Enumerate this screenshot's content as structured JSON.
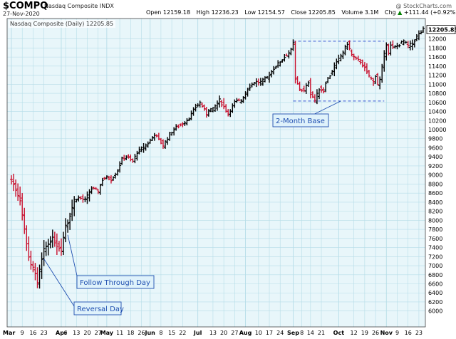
{
  "header": {
    "symbol": "$COMPQ",
    "name": "Nasdaq Composite INDX",
    "date": "27-Nov-2020",
    "copyright": "@ StockCharts.com",
    "quote": [
      {
        "label": "Open",
        "value": "12159.18"
      },
      {
        "label": "High",
        "value": "12236.23"
      },
      {
        "label": "Low",
        "value": "12154.57"
      },
      {
        "label": "Close",
        "value": "12205.85"
      },
      {
        "label": "Volume",
        "value": "3.1M"
      },
      {
        "label": "Chg",
        "value": "+111.44 (+0.92%)",
        "arrow": "▲"
      }
    ]
  },
  "colors": {
    "background": "#e8f6fa",
    "grid": "#b6dde8",
    "up_bar": "#000000",
    "down_bar": "#c8102e",
    "annotation": "#1f4fb0",
    "box_fill": "#dff2fb",
    "dashed_line": "#3050d0"
  },
  "chart_data": {
    "type": "ohlc",
    "legend": "Nasdaq Composite (Daily) 12205.85",
    "last_value": "12205.85",
    "ylim": [
      5650,
      12450
    ],
    "y_ticks": [
      6000,
      6200,
      6400,
      6600,
      6800,
      7000,
      7200,
      7400,
      7600,
      7800,
      8000,
      8200,
      8400,
      8600,
      8800,
      9000,
      9200,
      9400,
      9600,
      9800,
      10000,
      10200,
      10400,
      10600,
      10800,
      11000,
      11200,
      11400,
      11600,
      11800,
      12000
    ],
    "x_labels": [
      {
        "label": "Mar",
        "i": 0,
        "bold": true
      },
      {
        "label": "9",
        "i": 5
      },
      {
        "label": "16",
        "i": 10
      },
      {
        "label": "23",
        "i": 15
      },
      {
        "label": "Apr",
        "i": 23,
        "bold": true
      },
      {
        "label": "6",
        "i": 25
      },
      {
        "label": "13",
        "i": 30
      },
      {
        "label": "20",
        "i": 35
      },
      {
        "label": "27",
        "i": 40
      },
      {
        "label": "May",
        "i": 44,
        "bold": true
      },
      {
        "label": "11",
        "i": 50
      },
      {
        "label": "18",
        "i": 55
      },
      {
        "label": "26",
        "i": 60
      },
      {
        "label": "Jun",
        "i": 64,
        "bold": true
      },
      {
        "label": "8",
        "i": 69
      },
      {
        "label": "15",
        "i": 74
      },
      {
        "label": "22",
        "i": 79
      },
      {
        "label": "Jul",
        "i": 86,
        "bold": true
      },
      {
        "label": "13",
        "i": 93
      },
      {
        "label": "20",
        "i": 98
      },
      {
        "label": "27",
        "i": 103
      },
      {
        "label": "Aug",
        "i": 108,
        "bold": true
      },
      {
        "label": "10",
        "i": 114
      },
      {
        "label": "17",
        "i": 119
      },
      {
        "label": "24",
        "i": 124
      },
      {
        "label": "Sep",
        "i": 130,
        "bold": true
      },
      {
        "label": "8",
        "i": 134
      },
      {
        "label": "14",
        "i": 138
      },
      {
        "label": "21",
        "i": 143
      },
      {
        "label": "Oct",
        "i": 151,
        "bold": true
      },
      {
        "label": "12",
        "i": 158
      },
      {
        "label": "19",
        "i": 163
      },
      {
        "label": "26",
        "i": 168
      },
      {
        "label": "Nov",
        "i": 173,
        "bold": true
      },
      {
        "label": "9",
        "i": 178
      },
      {
        "label": "16",
        "i": 183
      },
      {
        "label": "23",
        "i": 188
      }
    ],
    "anchors": [
      [
        0,
        8900
      ],
      [
        4,
        8450
      ],
      [
        6,
        7800
      ],
      [
        8,
        7200
      ],
      [
        9,
        7000
      ],
      [
        10,
        6950
      ],
      [
        11,
        6850
      ],
      [
        12,
        6600
      ],
      [
        13,
        6900
      ],
      [
        15,
        7350
      ],
      [
        18,
        7550
      ],
      [
        19,
        7600
      ],
      [
        21,
        7450
      ],
      [
        23,
        7350
      ],
      [
        25,
        7900
      ],
      [
        26,
        7950
      ],
      [
        29,
        8450
      ],
      [
        31,
        8500
      ],
      [
        34,
        8450
      ],
      [
        37,
        8700
      ],
      [
        40,
        8650
      ],
      [
        42,
        8900
      ],
      [
        44,
        8950
      ],
      [
        46,
        8900
      ],
      [
        49,
        9100
      ],
      [
        51,
        9350
      ],
      [
        53,
        9400
      ],
      [
        56,
        9300
      ],
      [
        58,
        9500
      ],
      [
        63,
        9700
      ],
      [
        66,
        9900
      ],
      [
        70,
        9650
      ],
      [
        73,
        9900
      ],
      [
        76,
        10050
      ],
      [
        78,
        10100
      ],
      [
        82,
        10250
      ],
      [
        85,
        10500
      ],
      [
        87,
        10600
      ],
      [
        90,
        10350
      ],
      [
        91,
        10450
      ],
      [
        93,
        10450
      ],
      [
        96,
        10650
      ],
      [
        100,
        10350
      ],
      [
        103,
        10600
      ],
      [
        106,
        10650
      ],
      [
        109,
        10900
      ],
      [
        112,
        11050
      ],
      [
        115,
        11050
      ],
      [
        118,
        11150
      ],
      [
        121,
        11350
      ],
      [
        124,
        11500
      ],
      [
        127,
        11650
      ],
      [
        129,
        11750
      ],
      [
        130,
        11900
      ],
      [
        131,
        11100
      ],
      [
        133,
        10900
      ],
      [
        135,
        10850
      ],
      [
        137,
        11050
      ],
      [
        138,
        10800
      ],
      [
        140,
        10650
      ],
      [
        142,
        10900
      ],
      [
        144,
        10850
      ],
      [
        145,
        11050
      ],
      [
        147,
        11200
      ],
      [
        149,
        11400
      ],
      [
        151,
        11550
      ],
      [
        154,
        11800
      ],
      [
        155,
        11900
      ],
      [
        157,
        11650
      ],
      [
        159,
        11550
      ],
      [
        161,
        11500
      ],
      [
        163,
        11350
      ],
      [
        164,
        11250
      ],
      [
        167,
        11050
      ],
      [
        168,
        11200
      ],
      [
        169,
        11000
      ],
      [
        170,
        11100
      ],
      [
        172,
        11650
      ],
      [
        173,
        11900
      ],
      [
        174,
        11700
      ],
      [
        175,
        11850
      ],
      [
        176,
        11800
      ],
      [
        178,
        11850
      ],
      [
        181,
        11950
      ],
      [
        183,
        11850
      ],
      [
        185,
        11900
      ],
      [
        187,
        12050
      ],
      [
        189,
        12150
      ],
      [
        190,
        12205.85
      ]
    ],
    "count": 191,
    "reference_lines": [
      {
        "value": 11950,
        "from_i": 130,
        "to_i": 172
      },
      {
        "value": 10630,
        "from_i": 130,
        "to_i": 172
      }
    ],
    "annotations": [
      {
        "text": "2-Month Base",
        "target_i": 152,
        "target_value": 10630
      },
      {
        "text": "Follow Through Day",
        "target_i": 26,
        "target_value": 7680
      },
      {
        "text": "Reversal Day",
        "target_i": 15,
        "target_value": 7150
      }
    ]
  }
}
